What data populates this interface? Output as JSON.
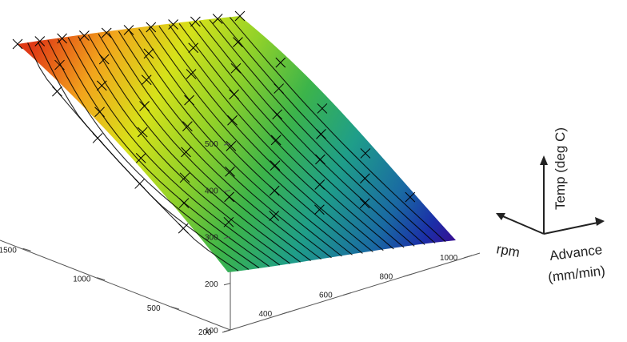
{
  "chart_data": {
    "type": "surface",
    "title": "",
    "legend": {
      "z_label": "Temp (deg C)",
      "rpm_label": "rpm",
      "advance_label": "Advance",
      "advance_unit": "(mm/min)"
    },
    "axes": {
      "advance": {
        "ticks": [
          "200",
          "400",
          "600",
          "800",
          "1000"
        ],
        "range": [
          200,
          1000
        ]
      },
      "rpm": {
        "ticks": [
          "500",
          "1000",
          "1500"
        ],
        "range": [
          100,
          1600
        ]
      },
      "temp": {
        "ticks": [
          "100",
          "200",
          "300",
          "400",
          "500"
        ],
        "range": [
          100,
          550
        ]
      }
    },
    "corner_values": [
      {
        "rpm": 1600,
        "advance": 200,
        "temp": 520
      },
      {
        "rpm": 1600,
        "advance": 1000,
        "temp": 495
      },
      {
        "rpm": 100,
        "advance": 200,
        "temp": 230
      },
      {
        "rpm": 100,
        "advance": 1000,
        "temp": 150
      }
    ],
    "grid": false,
    "colormap": [
      "#3b0a8f",
      "#1b2fa8",
      "#1a6aa3",
      "#1f9e89",
      "#3cb44a",
      "#8fd12a",
      "#d7e21a",
      "#f2a51c",
      "#e03a16"
    ]
  }
}
